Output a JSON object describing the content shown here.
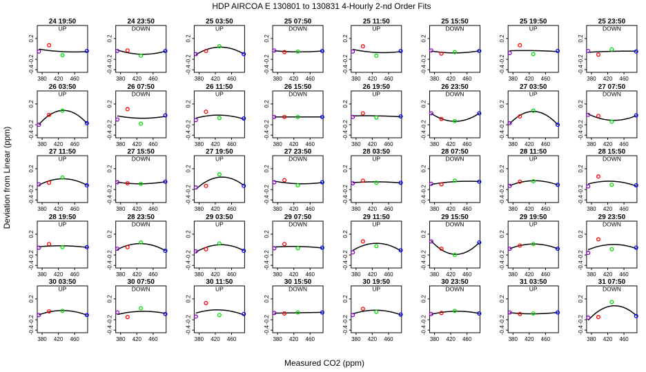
{
  "title": "HDP    AIRCOA E    130801 to 130831    4-Hourly 2-nd Order Fits",
  "xlabel": "Measured CO2 (ppm)",
  "ylabel": "Deviation from Linear (ppm)",
  "xticks": [
    "380",
    "420",
    "460"
  ],
  "yticks": [
    "0.2",
    "-0.2",
    "-0.4"
  ],
  "colors": {
    "s1": "#ff0000",
    "s2": "#00dd00",
    "s3": "#0000ff",
    "s0": "#8800cc",
    "curve": "#000000"
  },
  "chart_data": {
    "type": "scatter",
    "x_points": [
      372,
      397,
      430,
      490
    ],
    "xlim": [
      368,
      492
    ],
    "ylim": [
      -0.45,
      0.45
    ],
    "grid": false,
    "panels": [
      {
        "label": "24 19:50",
        "dir": "UP",
        "y": [
          -0.05,
          0.07,
          -0.12,
          -0.04
        ]
      },
      {
        "label": "24 23:50",
        "dir": "DOWN",
        "y": [
          -0.04,
          -0.03,
          -0.13,
          -0.04
        ]
      },
      {
        "label": "25 03:50",
        "dir": "UP",
        "y": [
          -0.1,
          -0.04,
          0.05,
          -0.1
        ]
      },
      {
        "label": "25 07:50",
        "dir": "DOWN",
        "y": [
          -0.03,
          -0.06,
          -0.05,
          -0.04
        ]
      },
      {
        "label": "25 11:50",
        "dir": "UP",
        "y": [
          -0.05,
          0.05,
          -0.13,
          -0.04
        ]
      },
      {
        "label": "25 15:50",
        "dir": "DOWN",
        "y": [
          -0.03,
          -0.09,
          -0.06,
          -0.04
        ]
      },
      {
        "label": "25 19:50",
        "dir": "UP",
        "y": [
          -0.08,
          0.07,
          -0.1,
          -0.04
        ]
      },
      {
        "label": "25 23:50",
        "dir": "DOWN",
        "y": [
          -0.04,
          -0.11,
          -0.01,
          -0.05
        ]
      },
      {
        "label": "26 03:50",
        "dir": "UP",
        "y": [
          -0.2,
          -0.01,
          0.07,
          -0.17
        ]
      },
      {
        "label": "26 07:50",
        "dir": "DOWN",
        "y": [
          -0.1,
          0.1,
          -0.18,
          -0.02
        ]
      },
      {
        "label": "26 11:50",
        "dir": "UP",
        "y": [
          -0.11,
          0.05,
          -0.07,
          -0.08
        ]
      },
      {
        "label": "26 15:50",
        "dir": "DOWN",
        "y": [
          -0.05,
          -0.05,
          -0.05,
          -0.05
        ]
      },
      {
        "label": "26 19:50",
        "dir": "UP",
        "y": [
          -0.05,
          0.02,
          -0.06,
          -0.04
        ]
      },
      {
        "label": "26 23:50",
        "dir": "DOWN",
        "y": [
          0.02,
          -0.09,
          -0.13,
          0.02
        ]
      },
      {
        "label": "27 03:50",
        "dir": "UP",
        "y": [
          -0.17,
          -0.04,
          0.07,
          -0.2
        ]
      },
      {
        "label": "27 07:50",
        "dir": "DOWN",
        "y": [
          -0.01,
          -0.03,
          -0.14,
          -0.02
        ]
      },
      {
        "label": "27 11:50",
        "dir": "UP",
        "y": [
          -0.1,
          -0.07,
          0.03,
          -0.12
        ]
      },
      {
        "label": "27 15:50",
        "dir": "DOWN",
        "y": [
          -0.06,
          -0.08,
          -0.09,
          -0.05
        ]
      },
      {
        "label": "27 19:50",
        "dir": "UP",
        "y": [
          -0.16,
          -0.13,
          0.09,
          -0.13
        ]
      },
      {
        "label": "27 23:50",
        "dir": "DOWN",
        "y": [
          -0.06,
          -0.02,
          -0.12,
          -0.06
        ]
      },
      {
        "label": "28 03:50",
        "dir": "UP",
        "y": [
          -0.08,
          -0.03,
          -0.07,
          -0.07
        ]
      },
      {
        "label": "28 07:50",
        "dir": "DOWN",
        "y": [
          -0.09,
          -0.1,
          -0.03,
          -0.05
        ]
      },
      {
        "label": "28 11:50",
        "dir": "UP",
        "y": [
          -0.13,
          -0.05,
          -0.04,
          -0.11
        ]
      },
      {
        "label": "28 15:50",
        "dir": "DOWN",
        "y": [
          -0.14,
          0.05,
          -0.11,
          -0.12
        ]
      },
      {
        "label": "28 19:50",
        "dir": "UP",
        "y": [
          -0.06,
          0.01,
          -0.05,
          -0.05
        ]
      },
      {
        "label": "28 23:50",
        "dir": "DOWN",
        "y": [
          -0.08,
          -0.05,
          0.04,
          -0.12
        ]
      },
      {
        "label": "29 03:50",
        "dir": "UP",
        "y": [
          -0.13,
          -0.09,
          0.02,
          -0.12
        ]
      },
      {
        "label": "29 07:50",
        "dir": "DOWN",
        "y": [
          -0.07,
          0.01,
          -0.07,
          -0.06
        ]
      },
      {
        "label": "29 11:50",
        "dir": "UP",
        "y": [
          -0.15,
          0.06,
          -0.03,
          -0.11
        ]
      },
      {
        "label": "29 15:50",
        "dir": "DOWN",
        "y": [
          0.06,
          -0.08,
          -0.2,
          0.04
        ]
      },
      {
        "label": "29 19:50",
        "dir": "UP",
        "y": [
          -0.08,
          -0.02,
          0.01,
          -0.08
        ]
      },
      {
        "label": "29 23:50",
        "dir": "DOWN",
        "y": [
          -0.16,
          0.1,
          -0.09,
          -0.06
        ]
      },
      {
        "label": "30 03:50",
        "dir": "UP",
        "y": [
          -0.11,
          -0.04,
          -0.03,
          -0.11
        ]
      },
      {
        "label": "30 07:50",
        "dir": "DOWN",
        "y": [
          -0.06,
          -0.15,
          0.02,
          -0.09
        ]
      },
      {
        "label": "30 11:50",
        "dir": "UP",
        "y": [
          -0.14,
          0.12,
          -0.11,
          -0.09
        ]
      },
      {
        "label": "30 15:50",
        "dir": "DOWN",
        "y": [
          -0.07,
          -0.08,
          -0.06,
          -0.06
        ]
      },
      {
        "label": "30 19:50",
        "dir": "UP",
        "y": [
          -0.11,
          0.01,
          -0.05,
          -0.1
        ]
      },
      {
        "label": "30 23:50",
        "dir": "DOWN",
        "y": [
          -0.09,
          -0.07,
          -0.03,
          -0.08
        ]
      },
      {
        "label": "31 03:50",
        "dir": "UP",
        "y": [
          -0.06,
          -0.09,
          -0.08,
          -0.06
        ]
      },
      {
        "label": "31 07:50",
        "dir": "DOWN",
        "y": [
          -0.16,
          -0.15,
          0.14,
          -0.13
        ]
      }
    ]
  }
}
